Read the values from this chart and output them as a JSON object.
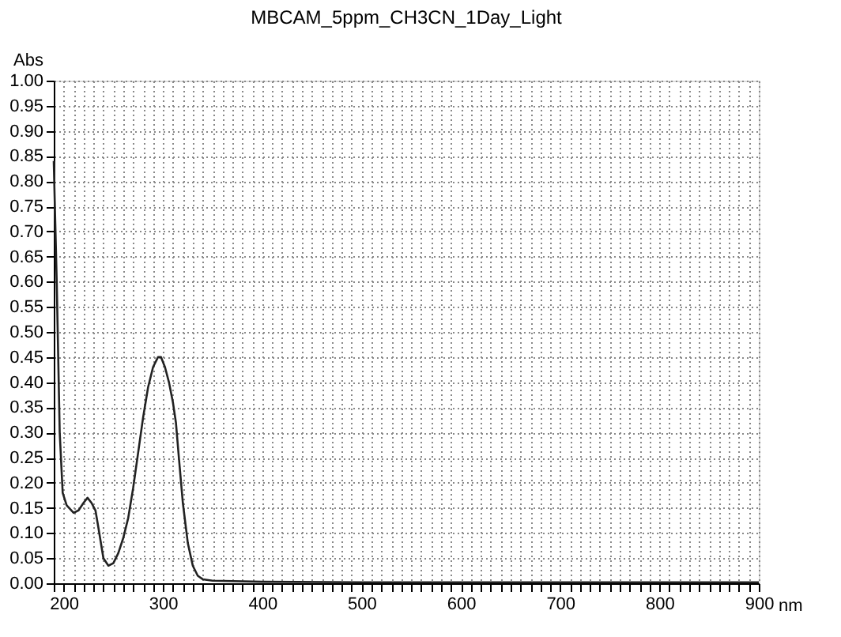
{
  "chart_data": {
    "type": "line",
    "title": "MBCAM_5ppm_CH3CN_1Day_Light",
    "xlabel": "nm",
    "ylabel": "Abs",
    "x": [
      190,
      193,
      196,
      199,
      203,
      210,
      215,
      220,
      224,
      228,
      232,
      235,
      240,
      245,
      250,
      255,
      260,
      265,
      270,
      275,
      280,
      285,
      290,
      295,
      298,
      302,
      306,
      310,
      313,
      316,
      320,
      325,
      330,
      335,
      340,
      350,
      400,
      500,
      900
    ],
    "series": [
      {
        "color": "#222222",
        "values": [
          0.84,
          0.6,
          0.3,
          0.18,
          0.155,
          0.14,
          0.145,
          0.16,
          0.17,
          0.16,
          0.145,
          0.11,
          0.05,
          0.035,
          0.04,
          0.06,
          0.09,
          0.13,
          0.19,
          0.26,
          0.33,
          0.39,
          0.43,
          0.45,
          0.45,
          0.43,
          0.4,
          0.36,
          0.32,
          0.25,
          0.16,
          0.08,
          0.035,
          0.015,
          0.008,
          0.005,
          0.003,
          0.002,
          0.002
        ]
      }
    ],
    "xlim": [
      190,
      900
    ],
    "xticks": [
      {
        "value": 190,
        "label": null
      },
      200,
      {
        "value": 210,
        "label": null
      },
      {
        "value": 220,
        "label": null
      },
      {
        "value": 230,
        "label": null
      },
      {
        "value": 240,
        "label": null
      },
      {
        "value": 250,
        "label": null
      },
      {
        "value": 260,
        "label": null
      },
      {
        "value": 270,
        "label": null
      },
      {
        "value": 280,
        "label": null
      },
      {
        "value": 290,
        "label": null
      },
      300,
      {
        "value": 310,
        "label": null
      },
      {
        "value": 320,
        "label": null
      },
      {
        "value": 330,
        "label": null
      },
      {
        "value": 340,
        "label": null
      },
      {
        "value": 350,
        "label": null
      },
      {
        "value": 360,
        "label": null
      },
      {
        "value": 370,
        "label": null
      },
      {
        "value": 380,
        "label": null
      },
      {
        "value": 390,
        "label": null
      },
      400,
      {
        "value": 410,
        "label": null
      },
      {
        "value": 420,
        "label": null
      },
      {
        "value": 430,
        "label": null
      },
      {
        "value": 440,
        "label": null
      },
      {
        "value": 450,
        "label": null
      },
      {
        "value": 460,
        "label": null
      },
      {
        "value": 470,
        "label": null
      },
      {
        "value": 480,
        "label": null
      },
      {
        "value": 490,
        "label": null
      },
      500,
      {
        "value": 510,
        "label": null
      },
      {
        "value": 520,
        "label": null
      },
      {
        "value": 530,
        "label": null
      },
      {
        "value": 540,
        "label": null
      },
      {
        "value": 550,
        "label": null
      },
      {
        "value": 560,
        "label": null
      },
      {
        "value": 570,
        "label": null
      },
      {
        "value": 580,
        "label": null
      },
      {
        "value": 590,
        "label": null
      },
      600,
      {
        "value": 610,
        "label": null
      },
      {
        "value": 620,
        "label": null
      },
      {
        "value": 630,
        "label": null
      },
      {
        "value": 640,
        "label": null
      },
      {
        "value": 650,
        "label": null
      },
      {
        "value": 660,
        "label": null
      },
      {
        "value": 670,
        "label": null
      },
      {
        "value": 680,
        "label": null
      },
      {
        "value": 690,
        "label": null
      },
      700,
      {
        "value": 710,
        "label": null
      },
      {
        "value": 720,
        "label": null
      },
      {
        "value": 730,
        "label": null
      },
      {
        "value": 740,
        "label": null
      },
      {
        "value": 750,
        "label": null
      },
      {
        "value": 760,
        "label": null
      },
      {
        "value": 770,
        "label": null
      },
      {
        "value": 780,
        "label": null
      },
      {
        "value": 790,
        "label": null
      },
      800,
      {
        "value": 810,
        "label": null
      },
      {
        "value": 820,
        "label": null
      },
      {
        "value": 830,
        "label": null
      },
      {
        "value": 840,
        "label": null
      },
      {
        "value": 850,
        "label": null
      },
      {
        "value": 860,
        "label": null
      },
      {
        "value": 870,
        "label": null
      },
      {
        "value": 880,
        "label": null
      },
      {
        "value": 890,
        "label": null
      },
      900
    ],
    "ylim": [
      0,
      1
    ],
    "yticks": [
      {
        "value": 0,
        "label": "0.00"
      },
      {
        "value": 0.05,
        "label": "0.05"
      },
      {
        "value": 0.1,
        "label": "0.10"
      },
      {
        "value": 0.15,
        "label": "0.15"
      },
      {
        "value": 0.2,
        "label": "0.20"
      },
      {
        "value": 0.25,
        "label": "0.25"
      },
      {
        "value": 0.3,
        "label": "0.30"
      },
      {
        "value": 0.35,
        "label": "0.35"
      },
      {
        "value": 0.4,
        "label": "0.40"
      },
      {
        "value": 0.45,
        "label": "0.45"
      },
      {
        "value": 0.5,
        "label": "0.50"
      },
      {
        "value": 0.55,
        "label": "0.55"
      },
      {
        "value": 0.6,
        "label": "0.60"
      },
      {
        "value": 0.65,
        "label": "0.65"
      },
      {
        "value": 0.7,
        "label": "0.70"
      },
      {
        "value": 0.75,
        "label": "0.75"
      },
      {
        "value": 0.8,
        "label": "0.80"
      },
      {
        "value": 0.85,
        "label": "0.85"
      },
      {
        "value": 0.9,
        "label": "0.90"
      },
      {
        "value": 0.95,
        "label": "0.95"
      },
      {
        "value": 1,
        "label": "1.00"
      }
    ],
    "grid": true,
    "marker": "none",
    "line_style": "solid"
  }
}
